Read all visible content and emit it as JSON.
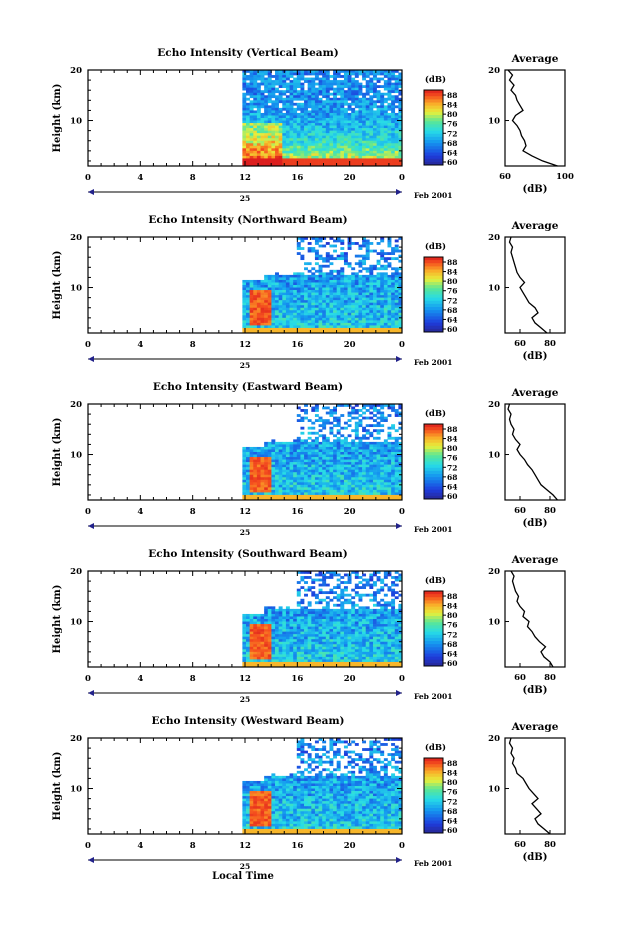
{
  "figure": {
    "date_label": "Feb 2001",
    "day_label": "25",
    "xlabel": "Local Time",
    "ylabel": "Height (km)",
    "colorbar_unit": "(dB)",
    "avg_title": "Average",
    "avg_xlabel": "(dB)"
  },
  "chart_data": [
    {
      "type": "heatmap",
      "title": "Echo Intensity (Vertical Beam)",
      "x_ticks": [
        "0",
        "4",
        "8",
        "12",
        "16",
        "20",
        "0"
      ],
      "xlim": [
        0,
        24
      ],
      "y_ticks": [
        "20",
        "10"
      ],
      "ylim": [
        1,
        20
      ],
      "colorbar": {
        "ticks": [
          "88",
          "84",
          "80",
          "76",
          "72",
          "68",
          "64",
          "60"
        ],
        "range": [
          60,
          88
        ]
      },
      "data_start_hour": 11.8,
      "profile": {
        "title": "Average",
        "xlim": [
          60,
          100
        ],
        "x_ticks": [
          "60",
          "100"
        ],
        "heights": [
          1,
          2,
          3,
          4,
          5,
          6,
          7,
          8,
          9,
          10,
          11,
          12,
          13,
          14,
          15,
          16,
          17,
          18,
          19,
          20
        ],
        "values": [
          95,
          85,
          78,
          72,
          74,
          73,
          71,
          70,
          68,
          65,
          67,
          72,
          70,
          68,
          67,
          64,
          66,
          63,
          65,
          62
        ]
      }
    },
    {
      "type": "heatmap",
      "title": "Echo Intensity (Northward Beam)",
      "x_ticks": [
        "0",
        "4",
        "8",
        "12",
        "16",
        "20",
        "0"
      ],
      "xlim": [
        0,
        24
      ],
      "y_ticks": [
        "20",
        "10"
      ],
      "ylim": [
        1,
        20
      ],
      "colorbar": {
        "ticks": [
          "88",
          "84",
          "80",
          "76",
          "72",
          "68",
          "64",
          "60"
        ],
        "range": [
          60,
          88
        ]
      },
      "data_start_hour": 11.8,
      "profile": {
        "title": "Average",
        "xlim": [
          50,
          90
        ],
        "x_ticks": [
          "60",
          "80"
        ],
        "heights": [
          1,
          2,
          3,
          4,
          5,
          6,
          7,
          8,
          9,
          10,
          11,
          12,
          13,
          14,
          15,
          16,
          17,
          18,
          19,
          20
        ],
        "values": [
          78,
          74,
          70,
          68,
          72,
          70,
          66,
          64,
          62,
          60,
          63,
          60,
          58,
          57,
          56,
          55,
          54,
          55,
          53,
          54
        ]
      }
    },
    {
      "type": "heatmap",
      "title": "Echo Intensity (Eastward Beam)",
      "x_ticks": [
        "0",
        "4",
        "8",
        "12",
        "16",
        "20",
        "0"
      ],
      "xlim": [
        0,
        24
      ],
      "y_ticks": [
        "20",
        "10"
      ],
      "ylim": [
        1,
        20
      ],
      "colorbar": {
        "ticks": [
          "88",
          "84",
          "80",
          "76",
          "72",
          "68",
          "64",
          "60"
        ],
        "range": [
          60,
          88
        ]
      },
      "data_start_hour": 11.8,
      "profile": {
        "title": "Average",
        "xlim": [
          50,
          90
        ],
        "x_ticks": [
          "60",
          "80"
        ],
        "heights": [
          1,
          2,
          3,
          4,
          5,
          6,
          7,
          8,
          9,
          10,
          11,
          12,
          13,
          14,
          15,
          16,
          17,
          18,
          19,
          20
        ],
        "values": [
          85,
          82,
          78,
          74,
          72,
          70,
          68,
          65,
          63,
          60,
          58,
          60,
          57,
          55,
          56,
          54,
          53,
          54,
          52,
          53
        ]
      }
    },
    {
      "type": "heatmap",
      "title": "Echo Intensity (Southward Beam)",
      "x_ticks": [
        "0",
        "4",
        "8",
        "12",
        "16",
        "20",
        "0"
      ],
      "xlim": [
        0,
        24
      ],
      "y_ticks": [
        "20",
        "10"
      ],
      "ylim": [
        1,
        20
      ],
      "colorbar": {
        "ticks": [
          "88",
          "84",
          "80",
          "76",
          "72",
          "68",
          "64",
          "60"
        ],
        "range": [
          60,
          88
        ]
      },
      "data_start_hour": 11.8,
      "profile": {
        "title": "Average",
        "xlim": [
          50,
          90
        ],
        "x_ticks": [
          "60",
          "80"
        ],
        "heights": [
          1,
          2,
          3,
          4,
          5,
          6,
          7,
          8,
          9,
          10,
          11,
          12,
          13,
          14,
          15,
          16,
          17,
          18,
          19,
          20
        ],
        "values": [
          82,
          80,
          76,
          74,
          77,
          73,
          70,
          68,
          65,
          66,
          62,
          63,
          60,
          58,
          59,
          57,
          56,
          55,
          56,
          54
        ]
      }
    },
    {
      "type": "heatmap",
      "title": "Echo Intensity (Westward Beam)",
      "x_ticks": [
        "0",
        "4",
        "8",
        "12",
        "16",
        "20",
        "0"
      ],
      "xlim": [
        0,
        24
      ],
      "y_ticks": [
        "20",
        "10"
      ],
      "ylim": [
        1,
        20
      ],
      "colorbar": {
        "ticks": [
          "88",
          "84",
          "80",
          "76",
          "72",
          "68",
          "64",
          "60"
        ],
        "range": [
          60,
          88
        ]
      },
      "data_start_hour": 11.8,
      "profile": {
        "title": "Average",
        "xlim": [
          50,
          90
        ],
        "x_ticks": [
          "60",
          "80"
        ],
        "heights": [
          1,
          2,
          3,
          4,
          5,
          6,
          7,
          8,
          9,
          10,
          11,
          12,
          13,
          14,
          15,
          16,
          17,
          18,
          19,
          20
        ],
        "values": [
          80,
          76,
          72,
          70,
          74,
          71,
          68,
          72,
          69,
          66,
          64,
          62,
          58,
          57,
          55,
          56,
          54,
          55,
          53,
          54
        ]
      }
    }
  ]
}
